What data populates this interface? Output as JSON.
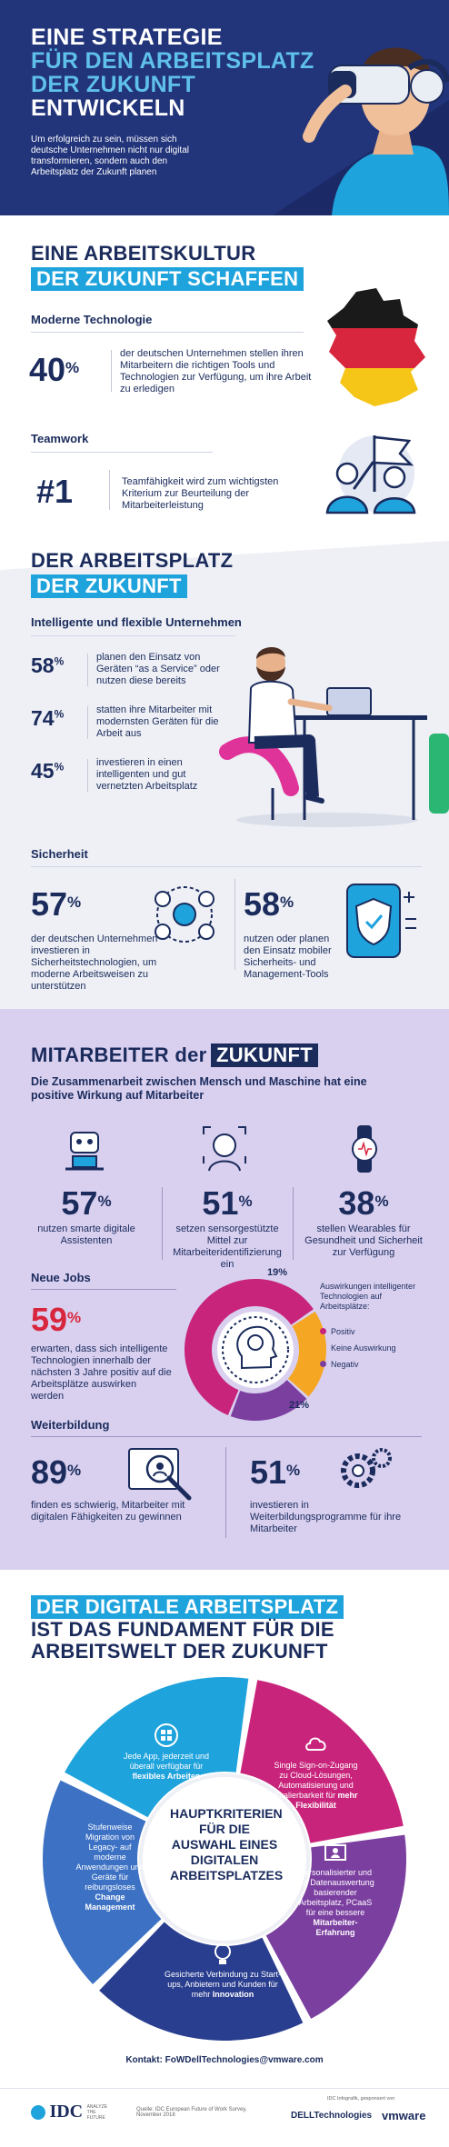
{
  "header": {
    "title_line1": "EINE STRATEGIE",
    "title_line2": "FÜR DEN ARBEITSPLATZ",
    "title_line3": "DER ZUKUNFT",
    "title_line4": "ENTWICKELN",
    "subtitle": "Um erfolgreich zu sein, müssen sich deutsche Unternehmen nicht nur digital transformieren, sondern auch den Arbeitsplatz der Zukunft planen"
  },
  "culture": {
    "heading_line1": "EINE ARBEITSKULTUR",
    "heading_line2": "DER ZUKUNFT SCHAFFEN",
    "tech_label": "Moderne Technologie",
    "tech_value": "40",
    "tech_unit": "%",
    "tech_text": "der deutschen Unternehmen stellen ihren Mitarbeitern die richtigen Tools und Technologien zur Verfügung, um ihre Arbeit zu erledigen",
    "team_label": "Teamwork",
    "team_value": "#1",
    "team_text": "Teamfähigkeit wird zum wichtigsten Kriterium zur Beurteilung der Mitarbeiterleistung"
  },
  "workplace": {
    "heading_line1": "DER ARBEITSPLATZ",
    "heading_line2": "DER ZUKUNFT",
    "intelligent_label": "Intelligente und flexible Unternehmen",
    "stats": [
      {
        "value": "58",
        "unit": "%",
        "text": "planen den Einsatz von Geräten “as a Service” oder nutzen diese bereits"
      },
      {
        "value": "74",
        "unit": "%",
        "text": "statten ihre Mitarbeiter mit modernsten Geräten für die Arbeit aus"
      },
      {
        "value": "45",
        "unit": "%",
        "text": "investieren in einen intelligenten und gut vernetzten Arbeitsplatz"
      }
    ],
    "security_label": "Sicherheit",
    "security": [
      {
        "value": "57",
        "unit": "%",
        "text": "der deutschen Unternehmen investieren in Sicherheitstechnologien, um moderne Arbeitsweisen zu unterstützen"
      },
      {
        "value": "58",
        "unit": "%",
        "text": "nutzen oder planen den Einsatz mobiler Sicherheits- und Management-Tools"
      }
    ]
  },
  "employees": {
    "heading_part1": "MITARBEITER der",
    "heading_part2": "ZUKUNFT",
    "subheading": "Die Zusammenarbeit zwischen Mensch und Maschine hat eine positive Wirkung auf Mitarbeiter",
    "stats": [
      {
        "value": "57",
        "unit": "%",
        "text": "nutzen smarte digitale Assistenten",
        "icon": "robot-laptop-icon"
      },
      {
        "value": "51",
        "unit": "%",
        "text": "setzen sensorgestützte Mittel zur Mitarbeiteridentifizierung ein",
        "icon": "face-id-icon"
      },
      {
        "value": "38",
        "unit": "%",
        "text": "stellen Wearables für Gesundheit und Sicherheit zur Verfügung",
        "icon": "smartwatch-icon"
      }
    ],
    "jobs_label": "Neue Jobs",
    "jobs_value": "59",
    "jobs_unit": "%",
    "jobs_text": "erwarten, dass sich intelligente Technologien innerhalb der nächsten 3 Jahre positiv auf die Arbeitsplätze auswirken werden",
    "donut": {
      "title": "Auswirkungen intelligenter Technologien auf Arbeitsplätze:",
      "segments": [
        {
          "label": "Positiv",
          "value": 59,
          "color": "#c8247c"
        },
        {
          "label": "Keine Auswirkung",
          "value": 21,
          "color": "#f5a623"
        },
        {
          "label": "Negativ",
          "value": 19,
          "color": "#7b3fa0"
        }
      ],
      "label_19": "19%",
      "label_21": "21%"
    },
    "training_label": "Weiterbildung",
    "training": [
      {
        "value": "89",
        "unit": "%",
        "text": "finden es schwierig, Mitarbeiter mit digitalen Fähigkeiten zu gewinnen"
      },
      {
        "value": "51",
        "unit": "%",
        "text": "investieren in Weiterbildungsprogramme für ihre Mitarbeiter"
      }
    ]
  },
  "digital": {
    "heading_line1": "DER DIGITALE ARBEITSPLATZ",
    "heading_line2": "IST DAS FUNDAMENT FÜR DIE",
    "heading_line3": "ARBEITSWELT DER ZUKUNFT",
    "center_text": "HAUPTKRITERIEN FÜR DIE AUSWAHL EINES DIGITALEN ARBEITSPLATZES",
    "segments": [
      {
        "text": "Jede App, jederzeit und überall verfügbar für",
        "bold": "flexibles Arbeiten",
        "color": "#1fa3dc"
      },
      {
        "text": "Single Sign-on-Zugang zu Cloud-Lösungen, Automatisierung und Skalierbarkeit für",
        "bold": "mehr Flexibilität",
        "color": "#c8247c"
      },
      {
        "text": "Personalisierter und auf Datenauswertung basierender Arbeitsplatz, PCaaS für eine bessere",
        "bold": "Mitarbeiter-Erfahrung",
        "color": "#7b3fa0"
      },
      {
        "text": "Gesicherte Verbindung zu Start-ups, Anbietern und Kunden für mehr",
        "bold": "Innovation",
        "color": "#2a3e8f"
      },
      {
        "text": "Stufenweise Migration von Legacy- auf moderne Anwendungen und Geräte für reibungsloses",
        "bold": "Change Management",
        "color": "#3c71c4"
      }
    ],
    "contact": "Kontakt: FoWDellTechnologies@vmware.com"
  },
  "footer": {
    "idc_logo": "IDC",
    "idc_tag": "ANALYZE THE FUTURE",
    "source": "Quelle: IDC European Future of Work Survey, November 2018",
    "sponsor_note": "IDC Infografik, gesponsert von",
    "dell": "DELLTechnologies",
    "vmware": "vmware"
  }
}
